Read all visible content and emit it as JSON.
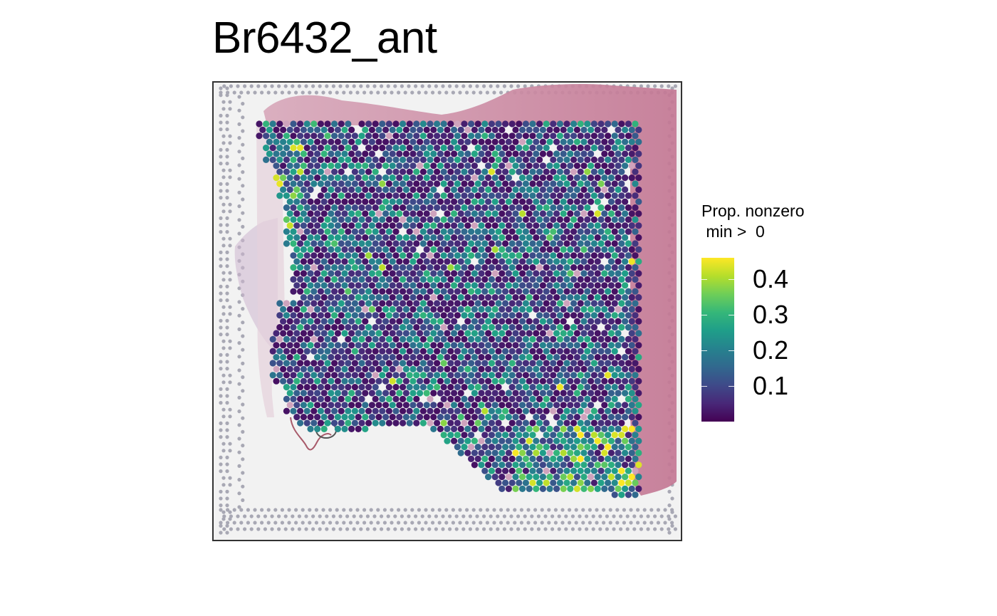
{
  "chart_data": {
    "type": "spatial-scatter",
    "title": "Br6432_ant",
    "legend": {
      "title": "Prop. nonzero\n min >  0",
      "ticks": [
        0.1,
        0.2,
        0.3,
        0.4
      ],
      "tick_labels": [
        "0.1",
        "0.2",
        "0.3",
        "0.4"
      ],
      "range": [
        0.0,
        0.46
      ],
      "placement": "right",
      "palette": "viridis"
    },
    "colors": {
      "panel_border": "#333333",
      "tissue": "#c98aa4",
      "background": "#f2f2f2",
      "fiducial": "#a8a8b4"
    }
  }
}
